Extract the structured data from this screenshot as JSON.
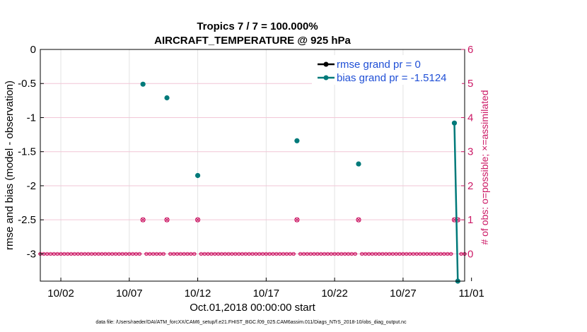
{
  "chart_data": {
    "type": "line",
    "title": "Tropics 7 / 7 = 100.000%",
    "subtitle": "AIRCRAFT_TEMPERATURE @ 925 hPa",
    "xlabel": "Oct.01,2018 00:00:00 start",
    "ylabel": "rmse and bias (model - observation)",
    "y2label": "# of obs: o=possible; ×=assimilated",
    "footer": "data file: /Users/raeder/DAI/ATM_forcXX/CAM6_setup/f.e21.FHIST_BGC.f09_025.CAM6assim.011/Diags_NTrS_2018-10/obs_diag_output.nc",
    "xlim": [
      0.5,
      31.5
    ],
    "ylim": [
      -3.4,
      0
    ],
    "y2lim": [
      -0.8,
      6
    ],
    "x_ticks": [
      2,
      7,
      12,
      17,
      22,
      27,
      32
    ],
    "x_tick_labels": [
      "10/02",
      "10/07",
      "10/12",
      "10/17",
      "10/22",
      "10/27",
      "11/01"
    ],
    "y_ticks": [
      0,
      -0.5,
      -1,
      -1.5,
      -2,
      -2.5,
      -3
    ],
    "y_tick_labels": [
      "0",
      "-0.5",
      "-1",
      "-1.5",
      "-2",
      "-2.5",
      "-3"
    ],
    "y2_ticks": [
      0,
      1,
      2,
      3,
      4,
      5,
      6
    ],
    "y2_tick_labels": [
      "0",
      "1",
      "2",
      "3",
      "4",
      "5",
      "6"
    ],
    "series": [
      {
        "name": "rmse grand pr = 0",
        "color": "#000000",
        "points": []
      },
      {
        "name": "bias grand pr = -1.5124",
        "color": "#007a7a",
        "points": [
          [
            8.0,
            -0.51
          ],
          [
            9.75,
            -0.71
          ],
          [
            12.0,
            -1.85
          ],
          [
            19.25,
            -1.34
          ],
          [
            23.75,
            -1.68
          ],
          [
            30.75,
            -1.08
          ],
          [
            31.0,
            -3.4
          ]
        ]
      }
    ],
    "obs_possible": {
      "color": "#cc1a66",
      "points": [
        [
          8.0,
          1
        ],
        [
          9.75,
          1
        ],
        [
          12.0,
          1
        ],
        [
          19.25,
          1
        ],
        [
          23.75,
          1
        ],
        [
          30.75,
          1
        ],
        [
          31.0,
          1
        ]
      ]
    },
    "obs_zero_start": 0.5,
    "obs_zero_step": 0.25,
    "obs_zero_end": 31.5
  }
}
